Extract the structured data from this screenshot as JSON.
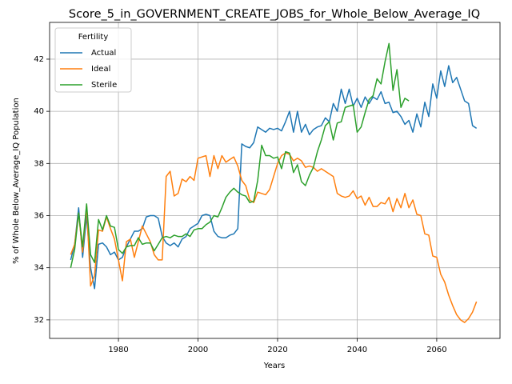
{
  "chart_data": {
    "type": "line",
    "title": "Score_5_in_GOVERNMENT_CREATE_JOBS_for_Whole_Below_Average_IQ",
    "xlabel": "Years",
    "ylabel": "% of Whole Below_Average_IQ Population",
    "legend_title": "Fertility",
    "legend_loc": "upper left",
    "grid": true,
    "x": [
      1968,
      1969,
      1970,
      1971,
      1972,
      1973,
      1974,
      1975,
      1976,
      1977,
      1978,
      1979,
      1980,
      1981,
      1982,
      1983,
      1984,
      1985,
      1986,
      1987,
      1988,
      1989,
      1990,
      1991,
      1992,
      1993,
      1994,
      1995,
      1996,
      1997,
      1998,
      1999,
      2000,
      2001,
      2002,
      2003,
      2004,
      2005,
      2006,
      2007,
      2008,
      2009,
      2010,
      2011,
      2012,
      2013,
      2014,
      2015,
      2016,
      2017,
      2018,
      2019,
      2020,
      2021,
      2022,
      2023,
      2024,
      2025,
      2026,
      2027,
      2028,
      2029,
      2030,
      2031,
      2032,
      2033,
      2034,
      2035,
      2036,
      2037,
      2038,
      2039,
      2040,
      2041,
      2042,
      2043,
      2044,
      2045,
      2046,
      2047,
      2048,
      2049,
      2050,
      2051,
      2052,
      2053,
      2054,
      2055,
      2056,
      2057,
      2058,
      2059,
      2060,
      2061,
      2062,
      2063,
      2064,
      2065,
      2066,
      2067,
      2068,
      2069,
      2070
    ],
    "xlim": [
      1962.7,
      2075.9
    ],
    "xticks": [
      1980,
      2000,
      2020,
      2040,
      2060
    ],
    "ylim": [
      31.29,
      43.41
    ],
    "yticks": [
      32,
      34,
      36,
      38,
      40,
      42
    ],
    "series": [
      {
        "name": "Actual",
        "color": "#1f77b4",
        "values": [
          34.3,
          34.9,
          36.3,
          34.4,
          36.0,
          34.0,
          33.2,
          34.9,
          34.95,
          34.8,
          34.5,
          34.6,
          34.3,
          34.4,
          34.8,
          35.1,
          35.4,
          35.4,
          35.5,
          35.95,
          36.0,
          36.0,
          35.9,
          35.2,
          34.95,
          34.85,
          34.95,
          34.8,
          35.1,
          35.2,
          35.5,
          35.6,
          35.7,
          36.0,
          36.05,
          36.0,
          35.4,
          35.2,
          35.15,
          35.15,
          35.25,
          35.3,
          35.5,
          38.75,
          38.65,
          38.6,
          38.8,
          39.4,
          39.3,
          39.2,
          39.35,
          39.3,
          39.35,
          39.25,
          39.6,
          40.0,
          39.2,
          40.0,
          39.2,
          39.5,
          39.1,
          39.3,
          39.4,
          39.45,
          39.75,
          39.6,
          40.3,
          40.0,
          40.85,
          40.3,
          40.85,
          40.2,
          40.5,
          40.15,
          40.55,
          40.3,
          40.55,
          40.45,
          40.75,
          40.3,
          40.35,
          39.95,
          40.0,
          39.8,
          39.5,
          39.65,
          39.2,
          39.9,
          39.4,
          40.35,
          39.8,
          41.05,
          40.5,
          41.55,
          40.95,
          41.75,
          41.1,
          41.3,
          40.85,
          40.4,
          40.3,
          39.45,
          39.35
        ]
      },
      {
        "name": "Ideal",
        "color": "#ff7f0e",
        "values": [
          34.5,
          34.9,
          36.1,
          34.6,
          36.4,
          33.3,
          33.7,
          35.45,
          35.4,
          35.95,
          35.5,
          35.1,
          34.3,
          33.5,
          35.0,
          35.1,
          34.4,
          35.0,
          35.6,
          35.3,
          35.0,
          34.5,
          34.3,
          34.3,
          37.5,
          37.7,
          36.75,
          36.85,
          37.4,
          37.3,
          37.5,
          37.35,
          38.2,
          38.25,
          38.3,
          37.5,
          38.3,
          37.8,
          38.3,
          38.05,
          38.15,
          38.25,
          37.9,
          37.35,
          37.15,
          36.6,
          36.5,
          36.9,
          36.85,
          36.8,
          37.0,
          37.5,
          38.0,
          38.3,
          38.4,
          38.35,
          38.1,
          38.2,
          38.1,
          37.85,
          37.9,
          37.85,
          37.7,
          37.8,
          37.7,
          37.6,
          37.5,
          36.85,
          36.75,
          36.7,
          36.75,
          36.95,
          36.65,
          36.75,
          36.4,
          36.7,
          36.35,
          36.35,
          36.5,
          36.45,
          36.7,
          36.15,
          36.65,
          36.3,
          36.85,
          36.3,
          36.6,
          36.05,
          36.0,
          35.3,
          35.25,
          34.45,
          34.4,
          33.75,
          33.45,
          32.95,
          32.55,
          32.2,
          32.0,
          31.9,
          32.05,
          32.3,
          32.7
        ]
      },
      {
        "name": "Sterile",
        "color": "#2ca02c",
        "values": [
          34.0,
          34.7,
          36.1,
          34.8,
          36.45,
          34.5,
          34.2,
          35.85,
          35.45,
          36.0,
          35.6,
          35.55,
          34.7,
          34.55,
          34.8,
          34.85,
          34.85,
          35.15,
          34.9,
          34.95,
          34.95,
          34.65,
          34.9,
          35.15,
          35.2,
          35.15,
          35.25,
          35.2,
          35.2,
          35.3,
          35.2,
          35.45,
          35.5,
          35.5,
          35.65,
          35.75,
          36.0,
          35.95,
          36.3,
          36.7,
          36.9,
          37.05,
          36.9,
          36.8,
          36.75,
          36.5,
          36.55,
          37.35,
          38.7,
          38.3,
          38.3,
          38.2,
          38.25,
          37.8,
          38.45,
          38.4,
          37.65,
          37.95,
          37.3,
          37.15,
          37.55,
          37.85,
          38.45,
          38.9,
          39.45,
          39.6,
          38.9,
          39.55,
          39.6,
          40.15,
          40.2,
          40.25,
          39.2,
          39.4,
          39.95,
          40.45,
          40.6,
          41.25,
          41.05,
          41.9,
          42.6,
          40.8,
          41.6,
          40.15,
          40.5,
          40.4,
          null,
          null,
          null,
          null,
          null,
          null,
          null,
          null,
          null,
          null,
          null,
          null,
          null,
          null,
          null,
          null,
          null
        ]
      }
    ]
  }
}
